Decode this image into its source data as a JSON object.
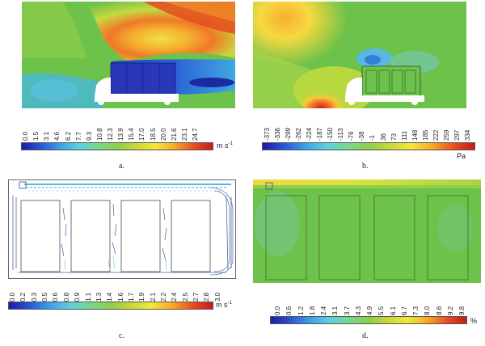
{
  "panels": [
    {
      "caption": "a.",
      "unit": "m s",
      "unit_exp": "-1",
      "ticks": [
        "0.0",
        "1.5",
        "3.1",
        "4.6",
        "6.2",
        "7.7",
        "9.3",
        "10.8",
        "12.3",
        "13.9",
        "15.4",
        "17.0",
        "18.5",
        "20.0",
        "21.6",
        "23.1",
        "24.7"
      ]
    },
    {
      "caption": "b.",
      "unit": "Pa",
      "unit_exp": "",
      "ticks": [
        "-373",
        "-336",
        "-299",
        "-262",
        "-224",
        "-187",
        "-150",
        "-113",
        "-76",
        "-38",
        "-1",
        "36",
        "73",
        "111",
        "148",
        "185",
        "222",
        "259",
        "297",
        "334"
      ]
    },
    {
      "caption": "c.",
      "unit": "m s",
      "unit_exp": "-1",
      "ticks": [
        "0.0",
        "0.2",
        "0.3",
        "0.5",
        "0.6",
        "0.8",
        "0.9",
        "1.1",
        "1.3",
        "1.4",
        "1.6",
        "1.7",
        "1.9",
        "2.1",
        "2.2",
        "2.4",
        "2.5",
        "2.7",
        "2.8",
        "3.0"
      ]
    },
    {
      "caption": "d.",
      "unit": "%",
      "unit_exp": "",
      "ticks": [
        "0.0",
        "0.6",
        "1.2",
        "1.8",
        "2.4",
        "3.1",
        "3.7",
        "4.3",
        "4.9",
        "5.5",
        "6.1",
        "6.7",
        "7.3",
        "8.0",
        "8.6",
        "9.2",
        "9.8"
      ]
    }
  ],
  "colors": {
    "scale": [
      "#1a1aa8",
      "#2a55d8",
      "#3aa0e8",
      "#5ad0e0",
      "#78d890",
      "#8ccf48",
      "#c8d838",
      "#f4e838",
      "#f8a828",
      "#e85020",
      "#c81818"
    ],
    "field_green": "#6cc24a"
  }
}
